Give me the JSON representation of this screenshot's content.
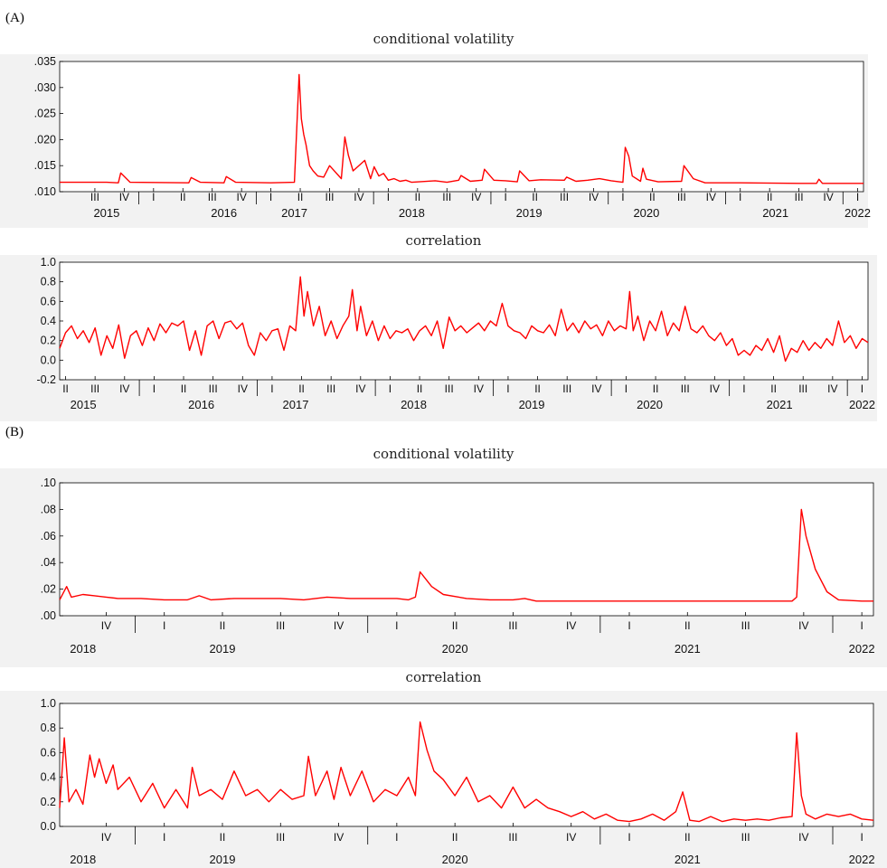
{
  "labels": {
    "panel_a": "(A)",
    "panel_b": "(B)"
  },
  "chart_data": [
    {
      "id": "a_vol",
      "type": "line",
      "title": "conditional volatility",
      "ylim": [
        0.01,
        0.035
      ],
      "yticks": [
        ".010",
        ".015",
        ".020",
        ".025",
        ".030",
        ".035"
      ],
      "ytick_values": [
        0.01,
        0.015,
        0.02,
        0.025,
        0.03,
        0.035
      ],
      "xlim": [
        2015.2,
        2022.05
      ],
      "quarter_labels": [
        "III",
        "IV",
        "I",
        "II",
        "III",
        "IV",
        "I",
        "II",
        "III",
        "IV",
        "I",
        "II",
        "III",
        "IV",
        "I",
        "II",
        "III",
        "IV",
        "I",
        "II",
        "III",
        "IV",
        "I",
        "II",
        "III",
        "IV",
        "I"
      ],
      "quarter_positions": [
        2015.5,
        2015.75,
        2016.0,
        2016.25,
        2016.5,
        2016.75,
        2017.0,
        2017.25,
        2017.5,
        2017.75,
        2018.0,
        2018.25,
        2018.5,
        2018.75,
        2019.0,
        2019.25,
        2019.5,
        2019.75,
        2020.0,
        2020.25,
        2020.5,
        2020.75,
        2021.0,
        2021.25,
        2021.5,
        2021.75,
        2022.0
      ],
      "year_labels": [
        "2015",
        "2016",
        "2017",
        "2018",
        "2019",
        "2020",
        "2021",
        "2022"
      ],
      "year_positions": [
        2015.6,
        2016.6,
        2017.2,
        2018.2,
        2019.2,
        2020.2,
        2021.3,
        2022.0
      ],
      "series": [
        {
          "color": "#ff0000",
          "x": [
            2015.2,
            2015.6,
            2015.7,
            2015.72,
            2015.8,
            2016.3,
            2016.32,
            2016.4,
            2016.6,
            2016.62,
            2016.7,
            2017.0,
            2017.2,
            2017.24,
            2017.26,
            2017.28,
            2017.3,
            2017.33,
            2017.36,
            2017.4,
            2017.45,
            2017.5,
            2017.6,
            2017.63,
            2017.66,
            2017.7,
            2017.8,
            2017.85,
            2017.88,
            2017.92,
            2017.96,
            2018.0,
            2018.05,
            2018.1,
            2018.15,
            2018.2,
            2018.4,
            2018.5,
            2018.6,
            2018.62,
            2018.7,
            2018.8,
            2018.82,
            2018.9,
            2019.0,
            2019.1,
            2019.12,
            2019.2,
            2019.3,
            2019.5,
            2019.52,
            2019.6,
            2019.7,
            2019.8,
            2019.9,
            2020.0,
            2020.02,
            2020.05,
            2020.08,
            2020.15,
            2020.17,
            2020.2,
            2020.3,
            2020.5,
            2020.52,
            2020.6,
            2020.7,
            2021.0,
            2021.5,
            2021.65,
            2021.67,
            2021.7,
            2021.9,
            2022.05
          ],
          "values": [
            0.0118,
            0.0118,
            0.0117,
            0.0136,
            0.0118,
            0.0117,
            0.0127,
            0.0118,
            0.0117,
            0.0129,
            0.0118,
            0.0117,
            0.0118,
            0.0325,
            0.024,
            0.021,
            0.019,
            0.015,
            0.014,
            0.013,
            0.0128,
            0.015,
            0.0125,
            0.0205,
            0.017,
            0.014,
            0.016,
            0.0125,
            0.0148,
            0.013,
            0.0135,
            0.0122,
            0.0125,
            0.012,
            0.0122,
            0.0118,
            0.0121,
            0.0118,
            0.0122,
            0.0131,
            0.012,
            0.0122,
            0.0143,
            0.0122,
            0.0121,
            0.0119,
            0.014,
            0.0121,
            0.0123,
            0.0122,
            0.0128,
            0.012,
            0.0122,
            0.0125,
            0.0121,
            0.0118,
            0.0185,
            0.0168,
            0.013,
            0.012,
            0.0145,
            0.0124,
            0.0119,
            0.012,
            0.015,
            0.0125,
            0.0117,
            0.0117,
            0.0116,
            0.0116,
            0.0124,
            0.0116,
            0.0116,
            0.0116
          ]
        }
      ]
    },
    {
      "id": "a_corr",
      "type": "line",
      "title": "correlation",
      "ylim": [
        -0.2,
        1.0
      ],
      "yticks": [
        "-0.2",
        "0.0",
        "0.2",
        "0.4",
        "0.6",
        "0.8",
        "1.0"
      ],
      "ytick_values": [
        -0.2,
        0.0,
        0.2,
        0.4,
        0.6,
        0.8,
        1.0
      ],
      "xlim": [
        2015.2,
        2022.05
      ],
      "quarter_labels": [
        "II",
        "III",
        "IV",
        "I",
        "II",
        "III",
        "IV",
        "I",
        "II",
        "III",
        "IV",
        "I",
        "II",
        "III",
        "IV",
        "I",
        "II",
        "III",
        "IV",
        "I",
        "II",
        "III",
        "IV",
        "I",
        "II",
        "III",
        "IV",
        "I"
      ],
      "quarter_positions": [
        2015.25,
        2015.5,
        2015.75,
        2016.0,
        2016.25,
        2016.5,
        2016.75,
        2017.0,
        2017.25,
        2017.5,
        2017.75,
        2018.0,
        2018.25,
        2018.5,
        2018.75,
        2019.0,
        2019.25,
        2019.5,
        2019.75,
        2020.0,
        2020.25,
        2020.5,
        2020.75,
        2021.0,
        2021.25,
        2021.5,
        2021.75,
        2022.0
      ],
      "year_labels": [
        "2015",
        "2016",
        "2017",
        "2018",
        "2019",
        "2020",
        "2021",
        "2022"
      ],
      "year_positions": [
        2015.4,
        2016.4,
        2017.2,
        2018.2,
        2019.2,
        2020.2,
        2021.3,
        2022.0
      ],
      "series": [
        {
          "color": "#ff0000",
          "x": [
            2015.2,
            2015.25,
            2015.3,
            2015.35,
            2015.4,
            2015.45,
            2015.5,
            2015.55,
            2015.6,
            2015.65,
            2015.7,
            2015.75,
            2015.8,
            2015.85,
            2015.9,
            2015.95,
            2016.0,
            2016.05,
            2016.1,
            2016.15,
            2016.2,
            2016.25,
            2016.3,
            2016.35,
            2016.4,
            2016.45,
            2016.5,
            2016.55,
            2016.6,
            2016.65,
            2016.7,
            2016.75,
            2016.8,
            2016.85,
            2016.9,
            2016.95,
            2017.0,
            2017.05,
            2017.1,
            2017.15,
            2017.2,
            2017.24,
            2017.27,
            2017.3,
            2017.35,
            2017.4,
            2017.45,
            2017.5,
            2017.55,
            2017.6,
            2017.65,
            2017.68,
            2017.72,
            2017.75,
            2017.8,
            2017.85,
            2017.9,
            2017.95,
            2018.0,
            2018.05,
            2018.1,
            2018.15,
            2018.2,
            2018.25,
            2018.3,
            2018.35,
            2018.4,
            2018.45,
            2018.5,
            2018.55,
            2018.6,
            2018.65,
            2018.7,
            2018.75,
            2018.8,
            2018.85,
            2018.9,
            2018.95,
            2019.0,
            2019.05,
            2019.1,
            2019.15,
            2019.2,
            2019.25,
            2019.3,
            2019.35,
            2019.4,
            2019.45,
            2019.5,
            2019.55,
            2019.6,
            2019.65,
            2019.7,
            2019.75,
            2019.8,
            2019.85,
            2019.9,
            2019.95,
            2020.0,
            2020.03,
            2020.06,
            2020.1,
            2020.15,
            2020.2,
            2020.25,
            2020.3,
            2020.35,
            2020.4,
            2020.45,
            2020.5,
            2020.55,
            2020.6,
            2020.65,
            2020.7,
            2020.75,
            2020.8,
            2020.85,
            2020.9,
            2020.95,
            2021.0,
            2021.05,
            2021.1,
            2021.15,
            2021.2,
            2021.25,
            2021.3,
            2021.35,
            2021.4,
            2021.45,
            2021.5,
            2021.55,
            2021.6,
            2021.65,
            2021.7,
            2021.75,
            2021.8,
            2021.85,
            2021.9,
            2021.95,
            2022.0,
            2022.05
          ],
          "values": [
            0.12,
            0.28,
            0.35,
            0.22,
            0.3,
            0.18,
            0.33,
            0.05,
            0.25,
            0.12,
            0.36,
            0.02,
            0.25,
            0.3,
            0.15,
            0.33,
            0.2,
            0.37,
            0.28,
            0.38,
            0.35,
            0.4,
            0.1,
            0.3,
            0.05,
            0.35,
            0.4,
            0.22,
            0.38,
            0.4,
            0.32,
            0.38,
            0.15,
            0.05,
            0.28,
            0.2,
            0.3,
            0.32,
            0.1,
            0.35,
            0.3,
            0.85,
            0.45,
            0.7,
            0.35,
            0.55,
            0.25,
            0.4,
            0.22,
            0.35,
            0.45,
            0.72,
            0.3,
            0.55,
            0.25,
            0.4,
            0.2,
            0.35,
            0.22,
            0.3,
            0.28,
            0.32,
            0.2,
            0.3,
            0.35,
            0.25,
            0.4,
            0.12,
            0.44,
            0.3,
            0.35,
            0.28,
            0.33,
            0.38,
            0.3,
            0.4,
            0.35,
            0.58,
            0.35,
            0.3,
            0.28,
            0.22,
            0.35,
            0.3,
            0.28,
            0.36,
            0.25,
            0.52,
            0.3,
            0.38,
            0.28,
            0.4,
            0.32,
            0.36,
            0.25,
            0.4,
            0.3,
            0.35,
            0.32,
            0.7,
            0.3,
            0.45,
            0.2,
            0.4,
            0.3,
            0.5,
            0.25,
            0.38,
            0.3,
            0.55,
            0.32,
            0.28,
            0.35,
            0.25,
            0.2,
            0.28,
            0.15,
            0.22,
            0.05,
            0.1,
            0.05,
            0.15,
            0.1,
            0.22,
            0.08,
            0.25,
            -0.01,
            0.12,
            0.08,
            0.2,
            0.1,
            0.18,
            0.12,
            0.22,
            0.15,
            0.4,
            0.18,
            0.25,
            0.12,
            0.22,
            0.18
          ]
        }
      ]
    },
    {
      "id": "b_vol",
      "type": "line",
      "title": "conditional volatility",
      "ylim": [
        0.0,
        0.1
      ],
      "yticks": [
        ".00",
        ".02",
        ".04",
        ".06",
        ".08",
        ".10"
      ],
      "ytick_values": [
        0.0,
        0.02,
        0.04,
        0.06,
        0.08,
        0.1
      ],
      "xlim": [
        2018.55,
        2022.05
      ],
      "quarter_labels": [
        "IV",
        "I",
        "II",
        "III",
        "IV",
        "I",
        "II",
        "III",
        "IV",
        "I",
        "II",
        "III",
        "IV",
        "I"
      ],
      "quarter_positions": [
        2018.75,
        2019.0,
        2019.25,
        2019.5,
        2019.75,
        2020.0,
        2020.25,
        2020.5,
        2020.75,
        2021.0,
        2021.25,
        2021.5,
        2021.75,
        2022.0
      ],
      "year_labels": [
        "2018",
        "2019",
        "2020",
        "2021",
        "2022"
      ],
      "year_positions": [
        2018.65,
        2019.25,
        2020.25,
        2021.25,
        2022.0
      ],
      "series": [
        {
          "color": "#ff0000",
          "x": [
            2018.55,
            2018.58,
            2018.6,
            2018.65,
            2018.7,
            2018.75,
            2018.8,
            2018.9,
            2019.0,
            2019.1,
            2019.15,
            2019.2,
            2019.3,
            2019.4,
            2019.5,
            2019.6,
            2019.7,
            2019.8,
            2019.9,
            2020.0,
            2020.05,
            2020.08,
            2020.1,
            2020.15,
            2020.2,
            2020.3,
            2020.4,
            2020.5,
            2020.55,
            2020.6,
            2020.8,
            2021.0,
            2021.2,
            2021.4,
            2021.6,
            2021.7,
            2021.72,
            2021.74,
            2021.76,
            2021.8,
            2021.85,
            2021.9,
            2022.0,
            2022.05
          ],
          "values": [
            0.012,
            0.022,
            0.014,
            0.016,
            0.015,
            0.014,
            0.013,
            0.013,
            0.012,
            0.012,
            0.015,
            0.012,
            0.013,
            0.013,
            0.013,
            0.012,
            0.014,
            0.013,
            0.013,
            0.013,
            0.012,
            0.014,
            0.033,
            0.022,
            0.016,
            0.013,
            0.012,
            0.012,
            0.013,
            0.011,
            0.011,
            0.011,
            0.011,
            0.011,
            0.011,
            0.011,
            0.014,
            0.08,
            0.06,
            0.035,
            0.018,
            0.012,
            0.011,
            0.011
          ]
        }
      ]
    },
    {
      "id": "b_corr",
      "type": "line",
      "title": "correlation",
      "ylim": [
        0.0,
        1.0
      ],
      "yticks": [
        "0.0",
        "0.2",
        "0.4",
        "0.6",
        "0.8",
        "1.0"
      ],
      "ytick_values": [
        0.0,
        0.2,
        0.4,
        0.6,
        0.8,
        1.0
      ],
      "xlim": [
        2018.55,
        2022.05
      ],
      "quarter_labels": [
        "IV",
        "I",
        "II",
        "III",
        "IV",
        "I",
        "II",
        "III",
        "IV",
        "I",
        "II",
        "III",
        "IV",
        "I"
      ],
      "quarter_positions": [
        2018.75,
        2019.0,
        2019.25,
        2019.5,
        2019.75,
        2020.0,
        2020.25,
        2020.5,
        2020.75,
        2021.0,
        2021.25,
        2021.5,
        2021.75,
        2022.0
      ],
      "year_labels": [
        "2018",
        "2019",
        "2020",
        "2021",
        "2022"
      ],
      "year_positions": [
        2018.65,
        2019.25,
        2020.25,
        2021.25,
        2022.0
      ],
      "series": [
        {
          "color": "#ff0000",
          "x": [
            2018.55,
            2018.57,
            2018.59,
            2018.62,
            2018.65,
            2018.68,
            2018.7,
            2018.72,
            2018.75,
            2018.78,
            2018.8,
            2018.85,
            2018.9,
            2018.95,
            2019.0,
            2019.05,
            2019.1,
            2019.12,
            2019.15,
            2019.2,
            2019.25,
            2019.3,
            2019.35,
            2019.4,
            2019.45,
            2019.5,
            2019.55,
            2019.6,
            2019.62,
            2019.65,
            2019.7,
            2019.73,
            2019.76,
            2019.8,
            2019.85,
            2019.9,
            2019.95,
            2020.0,
            2020.05,
            2020.08,
            2020.1,
            2020.13,
            2020.16,
            2020.2,
            2020.25,
            2020.3,
            2020.35,
            2020.4,
            2020.45,
            2020.5,
            2020.55,
            2020.6,
            2020.65,
            2020.7,
            2020.75,
            2020.8,
            2020.85,
            2020.9,
            2020.95,
            2021.0,
            2021.05,
            2021.1,
            2021.15,
            2021.2,
            2021.23,
            2021.26,
            2021.3,
            2021.35,
            2021.4,
            2021.45,
            2021.5,
            2021.55,
            2021.6,
            2021.65,
            2021.7,
            2021.72,
            2021.74,
            2021.76,
            2021.8,
            2021.85,
            2021.9,
            2021.95,
            2022.0,
            2022.05
          ],
          "values": [
            0.15,
            0.72,
            0.2,
            0.3,
            0.18,
            0.58,
            0.4,
            0.55,
            0.35,
            0.5,
            0.3,
            0.4,
            0.2,
            0.35,
            0.15,
            0.3,
            0.15,
            0.48,
            0.25,
            0.3,
            0.22,
            0.45,
            0.25,
            0.3,
            0.2,
            0.3,
            0.22,
            0.25,
            0.57,
            0.25,
            0.45,
            0.22,
            0.48,
            0.25,
            0.45,
            0.2,
            0.3,
            0.25,
            0.4,
            0.25,
            0.85,
            0.62,
            0.45,
            0.38,
            0.25,
            0.4,
            0.2,
            0.25,
            0.15,
            0.32,
            0.15,
            0.22,
            0.15,
            0.12,
            0.08,
            0.12,
            0.06,
            0.1,
            0.05,
            0.04,
            0.06,
            0.1,
            0.05,
            0.12,
            0.28,
            0.05,
            0.04,
            0.08,
            0.04,
            0.06,
            0.05,
            0.06,
            0.05,
            0.07,
            0.08,
            0.76,
            0.25,
            0.1,
            0.06,
            0.1,
            0.08,
            0.1,
            0.06,
            0.05
          ]
        }
      ]
    }
  ]
}
